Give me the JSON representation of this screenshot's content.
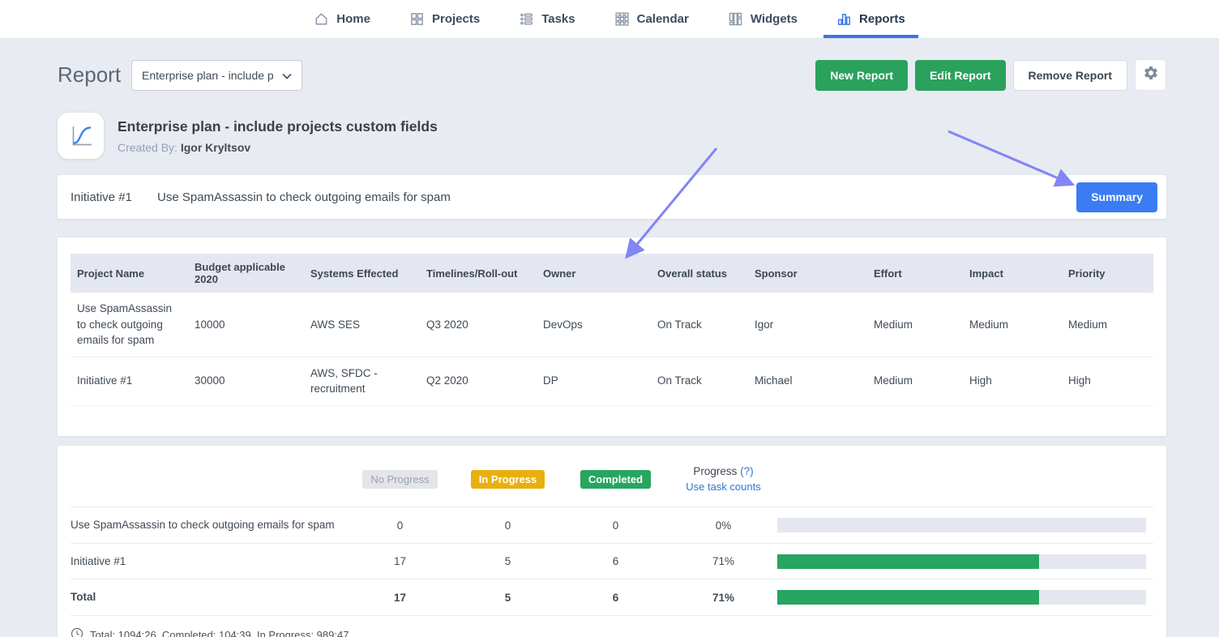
{
  "nav": {
    "items": [
      {
        "label": "Home",
        "icon": "home-icon",
        "active": false
      },
      {
        "label": "Projects",
        "icon": "projects-icon",
        "active": false
      },
      {
        "label": "Tasks",
        "icon": "tasks-icon",
        "active": false
      },
      {
        "label": "Calendar",
        "icon": "calendar-icon",
        "active": false
      },
      {
        "label": "Widgets",
        "icon": "widgets-icon",
        "active": false
      },
      {
        "label": "Reports",
        "icon": "reports-icon",
        "active": true
      }
    ]
  },
  "header": {
    "page_title": "Report",
    "report_select_value": "Enterprise plan - include p",
    "new_report_label": "New Report",
    "edit_report_label": "Edit Report",
    "remove_report_label": "Remove Report"
  },
  "report": {
    "title": "Enterprise plan - include projects custom fields",
    "created_by_label": "Created By:",
    "created_by": "Igor Kryltsov"
  },
  "initiative_bar": {
    "id": "Initiative #1",
    "name": "Use SpamAssassin to check outgoing emails for spam",
    "summary_label": "Summary"
  },
  "projects_table": {
    "columns": [
      "Project Name",
      "Budget applicable 2020",
      "Systems Effected",
      "Timelines/Roll-out",
      "Owner",
      "Overall status",
      "Sponsor",
      "Effort",
      "Impact",
      "Priority"
    ],
    "rows": [
      [
        "Use SpamAssassin to check outgoing emails for spam",
        "10000",
        "AWS SES",
        "Q3 2020",
        "DevOps",
        "On Track",
        "Igor",
        "Medium",
        "Medium",
        "Medium"
      ],
      [
        "Initiative #1",
        "30000",
        "AWS, SFDC - recruitment",
        "Q2 2020",
        "DP",
        "On Track",
        "Michael",
        "Medium",
        "High",
        "High"
      ]
    ]
  },
  "progress_table": {
    "headers": {
      "no_progress": "No Progress",
      "in_progress": "In Progress",
      "completed": "Completed",
      "progress_label": "Progress",
      "progress_help": "(?)",
      "use_task_counts": "Use task counts"
    },
    "rows": [
      {
        "name": "Use SpamAssassin to check outgoing emails for spam",
        "no_progress": "0",
        "in_progress": "0",
        "completed": "0",
        "progress": "0%",
        "pct": 0
      },
      {
        "name": "Initiative #1",
        "no_progress": "17",
        "in_progress": "5",
        "completed": "6",
        "progress": "71%",
        "pct": 71
      },
      {
        "name": "Total",
        "no_progress": "17",
        "in_progress": "5",
        "completed": "6",
        "progress": "71%",
        "pct": 71
      }
    ],
    "footer_text": "Total: 1094:26, Completed: 104:39, In Progress: 989:47"
  },
  "colors": {
    "accent_green": "#2aa25c",
    "accent_blue": "#3b7cf3",
    "nav_active_blue": "#3576eb",
    "in_progress_yellow": "#e8b00e",
    "completed_green": "#27a561",
    "link_blue": "#3076d2",
    "arrow_purple": "#8285f4",
    "page_background": "#e9ebf2"
  }
}
